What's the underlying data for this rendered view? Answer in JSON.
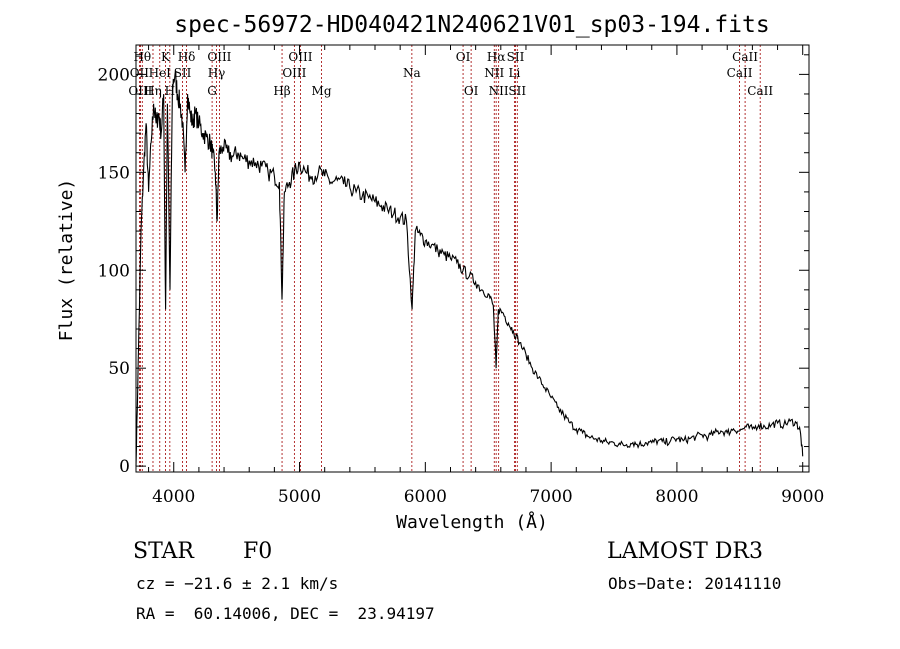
{
  "chart_data": {
    "type": "line",
    "title": "spec-56972-HD040421N240621V01_sp03-194.fits",
    "xlabel": "Wavelength (Å)",
    "ylabel": "Flux (relative)",
    "xlim": [
      3700,
      9050
    ],
    "ylim": [
      -3,
      215
    ],
    "x_ticks": [
      4000,
      5000,
      6000,
      7000,
      8000,
      9000
    ],
    "y_ticks": [
      0,
      50,
      100,
      150,
      200
    ],
    "grid": false,
    "series": [
      {
        "color": "#000000",
        "points": [
          [
            3700,
            0
          ],
          [
            3720,
            60
          ],
          [
            3740,
            120
          ],
          [
            3760,
            150
          ],
          [
            3780,
            175
          ],
          [
            3800,
            140
          ],
          [
            3820,
            165
          ],
          [
            3840,
            185
          ],
          [
            3860,
            175
          ],
          [
            3880,
            180
          ],
          [
            3900,
            170
          ],
          [
            3920,
            190
          ],
          [
            3935,
            80
          ],
          [
            3950,
            185
          ],
          [
            3970,
            90
          ],
          [
            3990,
            195
          ],
          [
            4010,
            200
          ],
          [
            4030,
            190
          ],
          [
            4050,
            185
          ],
          [
            4070,
            175
          ],
          [
            4090,
            150
          ],
          [
            4110,
            190
          ],
          [
            4130,
            180
          ],
          [
            4150,
            175
          ],
          [
            4170,
            180
          ],
          [
            4200,
            175
          ],
          [
            4230,
            170
          ],
          [
            4260,
            168
          ],
          [
            4290,
            165
          ],
          [
            4310,
            160
          ],
          [
            4330,
            150
          ],
          [
            4345,
            125
          ],
          [
            4360,
            160
          ],
          [
            4390,
            163
          ],
          [
            4430,
            160
          ],
          [
            4470,
            158
          ],
          [
            4510,
            160
          ],
          [
            4550,
            157
          ],
          [
            4600,
            156
          ],
          [
            4650,
            155
          ],
          [
            4700,
            153
          ],
          [
            4750,
            150
          ],
          [
            4800,
            148
          ],
          [
            4840,
            145
          ],
          [
            4861,
            85
          ],
          [
            4880,
            140
          ],
          [
            4920,
            145
          ],
          [
            4960,
            150
          ],
          [
            5000,
            155
          ],
          [
            5050,
            150
          ],
          [
            5100,
            148
          ],
          [
            5150,
            150
          ],
          [
            5200,
            148
          ],
          [
            5250,
            145
          ],
          [
            5300,
            146
          ],
          [
            5350,
            144
          ],
          [
            5400,
            142
          ],
          [
            5450,
            140
          ],
          [
            5500,
            138
          ],
          [
            5550,
            137
          ],
          [
            5600,
            135
          ],
          [
            5650,
            133
          ],
          [
            5700,
            131
          ],
          [
            5750,
            129
          ],
          [
            5800,
            127
          ],
          [
            5850,
            125
          ],
          [
            5895,
            80
          ],
          [
            5920,
            120
          ],
          [
            5960,
            118
          ],
          [
            6000,
            115
          ],
          [
            6050,
            113
          ],
          [
            6100,
            110
          ],
          [
            6150,
            108
          ],
          [
            6200,
            106
          ],
          [
            6250,
            104
          ],
          [
            6300,
            100
          ],
          [
            6350,
            97
          ],
          [
            6400,
            94
          ],
          [
            6450,
            90
          ],
          [
            6500,
            88
          ],
          [
            6540,
            82
          ],
          [
            6563,
            50
          ],
          [
            6580,
            80
          ],
          [
            6620,
            78
          ],
          [
            6660,
            73
          ],
          [
            6700,
            69
          ],
          [
            6750,
            63
          ],
          [
            6800,
            57
          ],
          [
            6850,
            50
          ],
          [
            6900,
            45
          ],
          [
            6950,
            40
          ],
          [
            7000,
            35
          ],
          [
            7050,
            30
          ],
          [
            7100,
            26
          ],
          [
            7150,
            22
          ],
          [
            7200,
            19
          ],
          [
            7250,
            17
          ],
          [
            7300,
            15
          ],
          [
            7350,
            14
          ],
          [
            7400,
            13
          ],
          [
            7450,
            12
          ],
          [
            7500,
            12
          ],
          [
            7550,
            11
          ],
          [
            7600,
            11
          ],
          [
            7650,
            12
          ],
          [
            7700,
            11
          ],
          [
            7750,
            12
          ],
          [
            7800,
            12
          ],
          [
            7850,
            13
          ],
          [
            7900,
            12
          ],
          [
            7950,
            13
          ],
          [
            8000,
            14
          ],
          [
            8050,
            13
          ],
          [
            8100,
            14
          ],
          [
            8150,
            15
          ],
          [
            8200,
            16
          ],
          [
            8250,
            15
          ],
          [
            8300,
            17
          ],
          [
            8350,
            18
          ],
          [
            8400,
            17
          ],
          [
            8450,
            19
          ],
          [
            8500,
            18
          ],
          [
            8550,
            20
          ],
          [
            8600,
            19
          ],
          [
            8650,
            21
          ],
          [
            8700,
            20
          ],
          [
            8750,
            21
          ],
          [
            8800,
            22
          ],
          [
            8850,
            21
          ],
          [
            8900,
            23
          ],
          [
            8950,
            22
          ],
          [
            8980,
            18
          ],
          [
            9000,
            5
          ]
        ]
      }
    ],
    "line_markers": [
      {
        "label": "Hθ",
        "x": 3750,
        "row": 0
      },
      {
        "label": "OII",
        "x": 3727,
        "row": 1
      },
      {
        "label": "OIII",
        "x": 3735,
        "row": 2
      },
      {
        "label": "Hη",
        "x": 3835,
        "row": 2
      },
      {
        "label": "HeI",
        "x": 3889,
        "row": 1
      },
      {
        "label": "K",
        "x": 3934,
        "row": 0
      },
      {
        "label": "H",
        "x": 3969,
        "row": 2
      },
      {
        "label": "SII",
        "x": 4070,
        "row": 1
      },
      {
        "label": "Hδ",
        "x": 4102,
        "row": 0
      },
      {
        "label": "OIII",
        "x": 4363,
        "row": 0
      },
      {
        "label": "Hγ",
        "x": 4340,
        "row": 1
      },
      {
        "label": "G",
        "x": 4305,
        "row": 2
      },
      {
        "label": "Hβ",
        "x": 4861,
        "row": 2
      },
      {
        "label": "OIII",
        "x": 4959,
        "row": 1
      },
      {
        "label": "OIII",
        "x": 5007,
        "row": 0
      },
      {
        "label": "Mg",
        "x": 5175,
        "row": 2
      },
      {
        "label": "Na",
        "x": 5893,
        "row": 1
      },
      {
        "label": "OI",
        "x": 6300,
        "row": 0
      },
      {
        "label": "OI",
        "x": 6364,
        "row": 2
      },
      {
        "label": "Hα",
        "x": 6563,
        "row": 0
      },
      {
        "label": "NII",
        "x": 6548,
        "row": 1
      },
      {
        "label": "NII",
        "x": 6583,
        "row": 2
      },
      {
        "label": "SII",
        "x": 6717,
        "row": 0
      },
      {
        "label": "Li",
        "x": 6708,
        "row": 1
      },
      {
        "label": "SII",
        "x": 6731,
        "row": 2
      },
      {
        "label": "CaII",
        "x": 8542,
        "row": 0
      },
      {
        "label": "CaII",
        "x": 8498,
        "row": 1
      },
      {
        "label": "CaII",
        "x": 8662,
        "row": 2
      }
    ]
  },
  "info": {
    "object_class": "STAR",
    "subclass": "F0",
    "survey": "LAMOST DR3",
    "redshift": "cz = −21.6 ± 2.1 km/s",
    "obs_date": "Obs−Date: 20141110",
    "coords": "RA =  60.14006, DEC =  23.94197"
  }
}
